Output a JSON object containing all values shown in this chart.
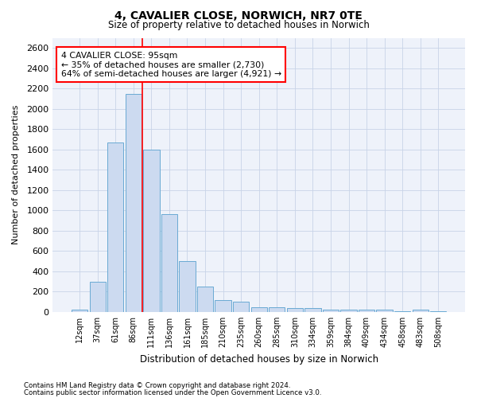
{
  "title": "4, CAVALIER CLOSE, NORWICH, NR7 0TE",
  "subtitle": "Size of property relative to detached houses in Norwich",
  "xlabel": "Distribution of detached houses by size in Norwich",
  "ylabel": "Number of detached properties",
  "footnote1": "Contains HM Land Registry data © Crown copyright and database right 2024.",
  "footnote2": "Contains public sector information licensed under the Open Government Licence v3.0.",
  "annotation_line1": "4 CAVALIER CLOSE: 95sqm",
  "annotation_line2": "← 35% of detached houses are smaller (2,730)",
  "annotation_line3": "64% of semi-detached houses are larger (4,921) →",
  "bar_categories": [
    "12sqm",
    "37sqm",
    "61sqm",
    "86sqm",
    "111sqm",
    "136sqm",
    "161sqm",
    "185sqm",
    "210sqm",
    "235sqm",
    "260sqm",
    "285sqm",
    "310sqm",
    "334sqm",
    "359sqm",
    "384sqm",
    "409sqm",
    "434sqm",
    "458sqm",
    "483sqm",
    "508sqm"
  ],
  "bar_values": [
    25,
    300,
    1670,
    2150,
    1600,
    960,
    500,
    250,
    120,
    100,
    50,
    50,
    35,
    35,
    20,
    25,
    20,
    20,
    5,
    25,
    5
  ],
  "bar_color": "#ccdaf0",
  "bar_edge_color": "#6aaad4",
  "bar_edge_width": 0.7,
  "vline_color": "red",
  "vline_x_index": 3.5,
  "annotation_box_color": "red",
  "grid_color": "#c8d4e8",
  "ylim": [
    0,
    2700
  ],
  "yticks": [
    0,
    200,
    400,
    600,
    800,
    1000,
    1200,
    1400,
    1600,
    1800,
    2000,
    2200,
    2400,
    2600
  ],
  "background_color": "#ffffff",
  "plot_bg_color": "#eef2fa",
  "figsize": [
    6.0,
    5.0
  ],
  "dpi": 100
}
